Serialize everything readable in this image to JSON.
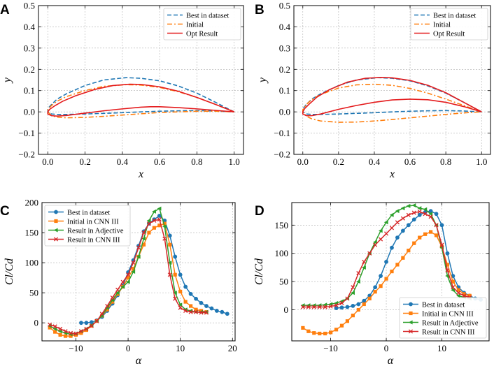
{
  "figure": {
    "panel_labels": [
      "A",
      "B",
      "C",
      "D"
    ]
  },
  "chart_data": [
    {
      "panel": "A",
      "type": "line",
      "xlabel": "x",
      "ylabel": "y",
      "xlim": [
        -0.05,
        1.05
      ],
      "ylim": [
        -0.2,
        0.5
      ],
      "xticks": [
        0.0,
        0.2,
        0.4,
        0.6,
        0.8,
        1.0
      ],
      "yticks": [
        -0.2,
        -0.1,
        0.0,
        0.1,
        0.2,
        0.3,
        0.4,
        0.5
      ],
      "xtick_labels": [
        "0.0",
        "0.2",
        "0.4",
        "0.6",
        "0.8",
        "1.0"
      ],
      "ytick_labels": [
        "−0.2",
        "−0.1",
        "0.0",
        "0.1",
        "0.2",
        "0.3",
        "0.4",
        "0.5"
      ],
      "grid": true,
      "legend_position": "top-right",
      "series": [
        {
          "name": "Best in dataset",
          "style": "dashed",
          "color": "#1f77b4",
          "x": [
            1.0,
            0.95,
            0.9,
            0.8,
            0.7,
            0.6,
            0.5,
            0.42,
            0.3,
            0.2,
            0.1,
            0.05,
            0.02,
            0.0,
            0.0,
            0.02,
            0.05,
            0.1,
            0.2,
            0.3,
            0.4,
            0.5,
            0.6,
            0.7,
            0.8,
            0.9,
            1.0
          ],
          "y": [
            0.0,
            0.022,
            0.045,
            0.088,
            0.122,
            0.146,
            0.158,
            0.161,
            0.15,
            0.124,
            0.085,
            0.06,
            0.035,
            0.015,
            0.0,
            -0.01,
            -0.012,
            -0.012,
            -0.01,
            -0.007,
            -0.004,
            0.0,
            0.003,
            0.005,
            0.006,
            0.004,
            0.0
          ]
        },
        {
          "name": "Initial",
          "style": "dashdot",
          "color": "#ff7f0e",
          "x": [
            1.0,
            0.9,
            0.8,
            0.7,
            0.6,
            0.5,
            0.42,
            0.3,
            0.2,
            0.1,
            0.05,
            0.02,
            0.0,
            0.0,
            0.02,
            0.05,
            0.1,
            0.2,
            0.3,
            0.4,
            0.5,
            0.6,
            0.7,
            0.8,
            0.9,
            1.0
          ],
          "y": [
            0.0,
            0.035,
            0.068,
            0.095,
            0.115,
            0.126,
            0.128,
            0.12,
            0.1,
            0.072,
            0.05,
            0.03,
            0.01,
            0.0,
            -0.018,
            -0.025,
            -0.028,
            -0.026,
            -0.021,
            -0.015,
            -0.009,
            -0.003,
            0.0,
            0.003,
            0.003,
            0.0
          ]
        },
        {
          "name": "Opt Result",
          "style": "solid",
          "color": "#e41a1c",
          "x": [
            1.0,
            0.9,
            0.8,
            0.7,
            0.6,
            0.5,
            0.44,
            0.35,
            0.25,
            0.15,
            0.08,
            0.04,
            0.01,
            0.0,
            0.0,
            0.02,
            0.05,
            0.1,
            0.2,
            0.3,
            0.4,
            0.5,
            0.55,
            0.6,
            0.7,
            0.8,
            0.9,
            1.0
          ],
          "y": [
            0.0,
            0.035,
            0.068,
            0.097,
            0.118,
            0.129,
            0.13,
            0.124,
            0.105,
            0.076,
            0.05,
            0.03,
            0.012,
            0.0,
            -0.01,
            -0.018,
            -0.02,
            -0.017,
            -0.006,
            0.005,
            0.014,
            0.022,
            0.024,
            0.024,
            0.02,
            0.014,
            0.007,
            0.0
          ]
        }
      ]
    },
    {
      "panel": "B",
      "type": "line",
      "xlabel": "x",
      "ylabel": "y",
      "xlim": [
        -0.05,
        1.05
      ],
      "ylim": [
        -0.2,
        0.5
      ],
      "xticks": [
        0.0,
        0.2,
        0.4,
        0.6,
        0.8,
        1.0
      ],
      "yticks": [
        -0.2,
        -0.1,
        0.0,
        0.1,
        0.2,
        0.3,
        0.4,
        0.5
      ],
      "xtick_labels": [
        "0.0",
        "0.2",
        "0.4",
        "0.6",
        "0.8",
        "1.0"
      ],
      "ytick_labels": [
        "−0.2",
        "−0.1",
        "0.0",
        "0.1",
        "0.2",
        "0.3",
        "0.4",
        "0.5"
      ],
      "grid": true,
      "legend_position": "top-right",
      "series": [
        {
          "name": "Best in dataset",
          "style": "dashed",
          "color": "#1f77b4",
          "x": [
            1.0,
            0.95,
            0.9,
            0.8,
            0.7,
            0.6,
            0.5,
            0.42,
            0.3,
            0.2,
            0.1,
            0.05,
            0.02,
            0.0,
            0.0,
            0.02,
            0.05,
            0.1,
            0.2,
            0.3,
            0.4,
            0.5,
            0.6,
            0.7,
            0.8,
            0.9,
            1.0
          ],
          "y": [
            0.0,
            0.022,
            0.045,
            0.088,
            0.122,
            0.146,
            0.158,
            0.161,
            0.15,
            0.124,
            0.085,
            0.06,
            0.035,
            0.015,
            0.0,
            -0.01,
            -0.012,
            -0.012,
            -0.01,
            -0.007,
            -0.004,
            0.0,
            0.003,
            0.005,
            0.006,
            0.004,
            0.0
          ]
        },
        {
          "name": "Initial",
          "style": "dashdot",
          "color": "#ff7f0e",
          "x": [
            1.0,
            0.9,
            0.8,
            0.7,
            0.6,
            0.5,
            0.4,
            0.3,
            0.2,
            0.1,
            0.05,
            0.02,
            0.0,
            0.0,
            0.02,
            0.05,
            0.1,
            0.2,
            0.3,
            0.4,
            0.5,
            0.6,
            0.7,
            0.8,
            0.9,
            1.0
          ],
          "y": [
            0.0,
            0.03,
            0.06,
            0.088,
            0.11,
            0.125,
            0.13,
            0.127,
            0.112,
            0.082,
            0.058,
            0.035,
            0.01,
            0.0,
            -0.02,
            -0.033,
            -0.043,
            -0.049,
            -0.048,
            -0.043,
            -0.036,
            -0.028,
            -0.02,
            -0.012,
            -0.005,
            0.0
          ]
        },
        {
          "name": "Opt Result",
          "style": "solid",
          "color": "#e41a1c",
          "x": [
            1.0,
            0.9,
            0.8,
            0.7,
            0.6,
            0.5,
            0.44,
            0.35,
            0.25,
            0.15,
            0.08,
            0.04,
            0.01,
            0.0,
            0.0,
            0.02,
            0.05,
            0.1,
            0.2,
            0.3,
            0.4,
            0.5,
            0.6,
            0.7,
            0.8,
            0.9,
            1.0
          ],
          "y": [
            0.0,
            0.045,
            0.09,
            0.125,
            0.148,
            0.16,
            0.162,
            0.158,
            0.14,
            0.105,
            0.07,
            0.04,
            0.015,
            0.0,
            -0.01,
            -0.018,
            -0.018,
            -0.01,
            0.012,
            0.03,
            0.045,
            0.056,
            0.06,
            0.057,
            0.045,
            0.025,
            0.0
          ]
        }
      ]
    },
    {
      "panel": "C",
      "type": "line",
      "xlabel": "α",
      "ylabel": "Cl/Cd",
      "xlim": [
        -16.5,
        20.5
      ],
      "ylim": [
        -30,
        200
      ],
      "xticks": [
        -10,
        0,
        10,
        20
      ],
      "yticks": [
        0,
        50,
        100,
        150,
        200
      ],
      "xtick_labels": [
        "−10",
        "0",
        "10",
        "20"
      ],
      "ytick_labels": [
        "0",
        "50",
        "100",
        "150",
        "200"
      ],
      "grid": true,
      "legend_position": "top-left",
      "series": [
        {
          "name": "Best in dataset",
          "color": "#1f77b4",
          "marker": "circle",
          "x": [
            -9,
            -8,
            -7,
            -6,
            -5,
            -4,
            -3,
            -2,
            -1,
            0,
            1,
            2,
            3,
            4,
            5,
            6,
            7,
            8,
            9,
            10,
            11,
            12,
            13,
            14,
            15,
            16,
            17,
            18,
            19
          ],
          "y": [
            0,
            0,
            1,
            4,
            10,
            20,
            32,
            46,
            62,
            84,
            104,
            128,
            152,
            165,
            172,
            178,
            170,
            145,
            110,
            80,
            60,
            48,
            40,
            33,
            28,
            24,
            20,
            18,
            15
          ]
        },
        {
          "name": "Initial in CNN III",
          "color": "#ff7f0e",
          "marker": "square",
          "x": [
            -15,
            -14,
            -13,
            -12,
            -11,
            -10,
            -9,
            -8,
            -7,
            -6,
            -5,
            -4,
            -3,
            -2,
            -1,
            0,
            1,
            2,
            3,
            4,
            5,
            6,
            7,
            8,
            9,
            10,
            11,
            12,
            13,
            14,
            15
          ],
          "y": [
            -8,
            -15,
            -20,
            -22,
            -22,
            -20,
            -17,
            -12,
            -5,
            3,
            12,
            22,
            35,
            48,
            60,
            75,
            90,
            110,
            130,
            150,
            158,
            162,
            165,
            130,
            80,
            52,
            35,
            28,
            22,
            20,
            18
          ]
        },
        {
          "name": "Result in Adjective",
          "color": "#2ca02c",
          "marker": "triangle-left",
          "x": [
            -15,
            -14,
            -13,
            -12,
            -11,
            -10,
            -9,
            -8,
            -7,
            -6,
            -5,
            -4,
            -3,
            -2,
            -1,
            0,
            1,
            2,
            3,
            4,
            5,
            6,
            7,
            8,
            9,
            10,
            11,
            12,
            13,
            14,
            15
          ],
          "y": [
            -5,
            -10,
            -14,
            -17,
            -19,
            -18,
            -14,
            -10,
            -4,
            3,
            12,
            25,
            38,
            50,
            60,
            68,
            85,
            110,
            140,
            170,
            185,
            190,
            160,
            100,
            50,
            30,
            22,
            20,
            18,
            18,
            18
          ]
        },
        {
          "name": "Result in CNN III",
          "color": "#d62728",
          "marker": "x",
          "x": [
            -15,
            -14,
            -13,
            -12,
            -11,
            -10,
            -9,
            -8,
            -7,
            -6,
            -5,
            -4,
            -3,
            -2,
            -1,
            0,
            1,
            2,
            3,
            4,
            5,
            6,
            7,
            8,
            9,
            10,
            11,
            12,
            13,
            14,
            15
          ],
          "y": [
            -3,
            -6,
            -10,
            -14,
            -17,
            -18,
            -14,
            -10,
            -5,
            3,
            15,
            28,
            42,
            55,
            68,
            80,
            100,
            125,
            150,
            165,
            170,
            172,
            140,
            80,
            40,
            25,
            20,
            18,
            18,
            17,
            17
          ]
        }
      ]
    },
    {
      "panel": "D",
      "type": "line",
      "xlabel": "α",
      "ylabel": "Cl/Cd",
      "xlim": [
        -17,
        18.5
      ],
      "ylim": [
        -55,
        190
      ],
      "xticks": [
        -10,
        0,
        10
      ],
      "yticks": [
        0,
        50,
        100,
        150
      ],
      "xtick_labels": [
        "−10",
        "0",
        "10"
      ],
      "ytick_labels": [
        "0",
        "50",
        "100",
        "150"
      ],
      "grid": true,
      "legend_position": "bottom-right",
      "series": [
        {
          "name": "Best in dataset",
          "color": "#1f77b4",
          "marker": "circle",
          "x": [
            -9,
            -8,
            -7,
            -6,
            -5,
            -4,
            -3,
            -2,
            -1,
            0,
            1,
            2,
            3,
            4,
            5,
            6,
            7,
            8,
            9,
            10,
            11,
            12,
            13,
            14,
            15,
            16,
            17
          ],
          "y": [
            3,
            4,
            5,
            7,
            10,
            16,
            25,
            40,
            60,
            85,
            110,
            128,
            140,
            150,
            160,
            168,
            173,
            175,
            170,
            150,
            100,
            60,
            40,
            30,
            25,
            20,
            18
          ]
        },
        {
          "name": "Initial in CNN III",
          "color": "#ff7f0e",
          "marker": "square",
          "x": [
            -15,
            -14,
            -13,
            -12,
            -11,
            -10,
            -9,
            -8,
            -7,
            -6,
            -5,
            -4,
            -3,
            -2,
            -1,
            0,
            1,
            2,
            3,
            4,
            5,
            6,
            7,
            8,
            9,
            10,
            11,
            12,
            13,
            14,
            15
          ],
          "y": [
            -32,
            -38,
            -41,
            -42,
            -42,
            -40,
            -35,
            -28,
            -20,
            -10,
            0,
            10,
            20,
            32,
            42,
            55,
            68,
            80,
            92,
            105,
            118,
            128,
            134,
            138,
            132,
            112,
            80,
            50,
            35,
            28,
            25
          ]
        },
        {
          "name": "Result in Adjective",
          "color": "#2ca02c",
          "marker": "triangle-left",
          "x": [
            -15,
            -14,
            -13,
            -12,
            -11,
            -10,
            -9,
            -8,
            -7,
            -6,
            -5,
            -4,
            -3,
            -2,
            -1,
            0,
            1,
            2,
            3,
            4,
            5,
            6,
            7,
            8,
            9,
            10,
            11,
            12,
            13,
            14,
            15
          ],
          "y": [
            8,
            8,
            8,
            8,
            9,
            10,
            12,
            15,
            20,
            30,
            50,
            75,
            100,
            120,
            140,
            155,
            168,
            175,
            180,
            184,
            185,
            180,
            178,
            170,
            150,
            110,
            60,
            35,
            25,
            22,
            20
          ]
        },
        {
          "name": "Result in CNN III",
          "color": "#d62728",
          "marker": "x",
          "x": [
            -15,
            -14,
            -13,
            -12,
            -11,
            -10,
            -9,
            -8,
            -7,
            -6,
            -5,
            -4,
            -3,
            -2,
            -1,
            0,
            1,
            2,
            3,
            4,
            5,
            6,
            7,
            8,
            9,
            10,
            11,
            12,
            13,
            14,
            15
          ],
          "y": [
            5,
            5,
            5,
            5,
            5,
            6,
            8,
            12,
            20,
            40,
            65,
            85,
            100,
            115,
            125,
            135,
            145,
            155,
            162,
            168,
            172,
            174,
            170,
            165,
            150,
            115,
            70,
            40,
            30,
            25,
            22
          ]
        }
      ]
    }
  ]
}
